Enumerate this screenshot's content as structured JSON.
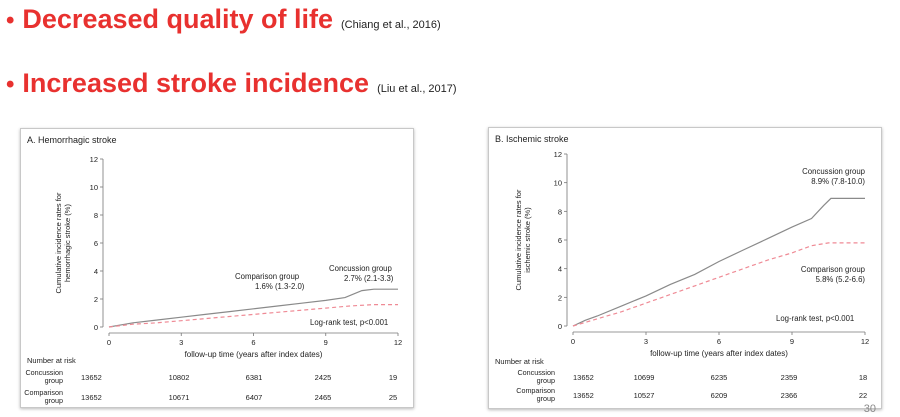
{
  "bullets": [
    {
      "text": "Decreased quality of life",
      "citation": "(Chiang et al., 2016)"
    },
    {
      "text": "Increased stroke incidence",
      "citation": "(Liu et al., 2017)"
    }
  ],
  "bullet_symbol": "•",
  "page_number": "30",
  "colors": {
    "accent": "#e8312f",
    "concussion_line": "#8a8a8a",
    "comparison_line": "#ef8a95"
  },
  "chart_data": [
    {
      "type": "line",
      "title": "A. Hemorrhagic stroke",
      "xlabel": "follow-up time (years after index dates)",
      "ylabel": "Cumulative incidence rates for hemorrhagic stroke (%)",
      "ylabel_lines": [
        "Cumulative incidence rates for",
        "hemorrhagic stroke (%)"
      ],
      "xlim": [
        0,
        12
      ],
      "ylim": [
        0,
        12
      ],
      "xticks": [
        0,
        3,
        6,
        9,
        12
      ],
      "yticks": [
        0,
        2,
        4,
        6,
        8,
        10,
        12
      ],
      "series": [
        {
          "name": "Concussion group",
          "style": "solid",
          "x": [
            0,
            1,
            2,
            3,
            4,
            5,
            6,
            7,
            8,
            9,
            9.8,
            10.5,
            11,
            12
          ],
          "y": [
            0,
            0.3,
            0.5,
            0.7,
            0.9,
            1.1,
            1.3,
            1.5,
            1.7,
            1.9,
            2.1,
            2.6,
            2.7,
            2.7
          ]
        },
        {
          "name": "Comparison group",
          "style": "dashed",
          "x": [
            0,
            1,
            2,
            3,
            4,
            5,
            6,
            7,
            8,
            9,
            10,
            11,
            12
          ],
          "y": [
            0,
            0.2,
            0.3,
            0.45,
            0.6,
            0.75,
            0.9,
            1.05,
            1.2,
            1.35,
            1.5,
            1.6,
            1.6
          ]
        }
      ],
      "annotations": [
        {
          "text": "Concussion group",
          "text2": "2.7% (2.1-3.3)"
        },
        {
          "text": "Comparison group",
          "text2": "1.6% (1.3-2.0)"
        },
        {
          "text": "Log-rank test, p<0.001"
        }
      ],
      "risk_table": {
        "header": "Number at risk",
        "rows": [
          {
            "label_lines": [
              "Concussion",
              "group"
            ],
            "values": [
              13652,
              10802,
              6381,
              2425,
              19
            ]
          },
          {
            "label_lines": [
              "Comparison",
              "group"
            ],
            "values": [
              13652,
              10671,
              6407,
              2465,
              25
            ]
          }
        ]
      },
      "grid": false
    },
    {
      "type": "line",
      "title": "B. Ischemic stroke",
      "xlabel": "follow-up time (years after index dates)",
      "ylabel": "Cumulative incidence rates for ischemic stroke (%)",
      "ylabel_lines": [
        "Cumulative incidence rates for",
        "ischemic stroke (%)"
      ],
      "xlim": [
        0,
        12
      ],
      "ylim": [
        0,
        12
      ],
      "xticks": [
        0,
        3,
        6,
        9,
        12
      ],
      "yticks": [
        0,
        2,
        4,
        6,
        8,
        10,
        12
      ],
      "series": [
        {
          "name": "Concussion group",
          "style": "solid",
          "x": [
            0,
            0.5,
            1,
            2,
            3,
            4,
            5,
            6,
            7,
            8,
            9,
            9.8,
            10.3,
            10.6,
            11,
            12
          ],
          "y": [
            0,
            0.4,
            0.7,
            1.4,
            2.1,
            2.9,
            3.6,
            4.5,
            5.3,
            6.1,
            6.9,
            7.5,
            8.4,
            8.9,
            8.9,
            8.9
          ]
        },
        {
          "name": "Comparison group",
          "style": "dashed",
          "x": [
            0,
            1,
            2,
            3,
            4,
            5,
            6,
            7,
            8,
            9,
            9.8,
            10.5,
            12
          ],
          "y": [
            0,
            0.5,
            1.0,
            1.6,
            2.2,
            2.8,
            3.4,
            4.0,
            4.6,
            5.1,
            5.6,
            5.8,
            5.8
          ]
        }
      ],
      "annotations": [
        {
          "text": "Concussion group",
          "text2": "8.9% (7.8-10.0)"
        },
        {
          "text": "Comparison group",
          "text2": "5.8% (5.2-6.6)"
        },
        {
          "text": "Log-rank test, p<0.001"
        }
      ],
      "risk_table": {
        "header": "Number at risk",
        "rows": [
          {
            "label_lines": [
              "Concussion",
              "group"
            ],
            "values": [
              13652,
              10699,
              6235,
              2359,
              18
            ]
          },
          {
            "label_lines": [
              "Comparison",
              "group"
            ],
            "values": [
              13652,
              10527,
              6209,
              2366,
              22
            ]
          }
        ]
      },
      "grid": false
    }
  ]
}
